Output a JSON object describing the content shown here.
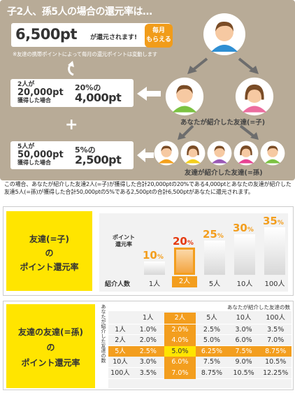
{
  "top": {
    "title": "子2人、孫5人の場合の還元率は…",
    "total_points": "6,500pt",
    "total_suffix": "が還元されます!",
    "badge_line1": "毎月",
    "badge_line2": "もらえる",
    "note": "※友達の携帯ポイントによって毎月の還元ポイントは変動します",
    "child_box": {
      "count": "2人が",
      "earned": "20,000pt",
      "condition": "獲得した場合",
      "rate": "20%の",
      "result": "4,000pt"
    },
    "plus": "+",
    "grand_box": {
      "count": "5人が",
      "earned": "50,000pt",
      "condition": "獲得した場合",
      "rate": "5%の",
      "result": "2,500pt"
    },
    "child_label": "あなたが紹介した友達(=子)",
    "grand_label": "友達が紹介した友達(=孫)"
  },
  "paragraph": "この場合、あなたが紹介した友達2人(=子)が獲得した合計20,000ptの20%である4,000ptとあなたの友達が紹介した友達5人(=孫)が獲得した合計50,000ptの5%である2,500ptの合計6,500ptがあなたに還元されます。",
  "mid": {
    "line1": "友達(=子)",
    "line2": "の",
    "line3": "ポイント還元率",
    "chart_title_1": "ポイント",
    "chart_title_2": "還元率",
    "count_label": "紹介人数"
  },
  "chart_data": {
    "type": "bar",
    "categories": [
      "1人",
      "2人",
      "5人",
      "10人",
      "100人"
    ],
    "values": [
      10,
      20,
      25,
      30,
      35
    ],
    "value_labels": [
      "10",
      "20",
      "25",
      "30",
      "35"
    ],
    "unit": "%",
    "highlight_index": 1,
    "highlight_color": "#f39e1e"
  },
  "bottom": {
    "line1": "友達の友達(=孫)",
    "line2": "の",
    "line3": "ポイント還元率",
    "vertical_label": "あなたが紹介した友達の数",
    "top_label": "あなたが紹介した友達の数",
    "columns": [
      "1人",
      "2人",
      "5人",
      "10人",
      "100人"
    ],
    "rows": [
      {
        "label": "1人",
        "values": [
          "1.0%",
          "2.0%",
          "2.5%",
          "3.0%",
          "3.5%"
        ]
      },
      {
        "label": "2人",
        "values": [
          "2.0%",
          "4.0%",
          "5.0%",
          "6.0%",
          "7.0%"
        ]
      },
      {
        "label": "5人",
        "values": [
          "2.5%",
          "5.0%",
          "6.25%",
          "7.5%",
          "8.75%"
        ]
      },
      {
        "label": "10人",
        "values": [
          "3.0%",
          "6.0%",
          "7.5%",
          "9.0%",
          "10.5%"
        ]
      },
      {
        "label": "100人",
        "values": [
          "3.5%",
          "7.0%",
          "8.75%",
          "10.5%",
          "12.25%"
        ]
      }
    ],
    "highlight_col": 1,
    "highlight_row": 2
  },
  "colors": {
    "panel": "#b8ab97",
    "accent": "#f39e1e",
    "yellow": "#ffe500",
    "red": "#e53b10"
  }
}
